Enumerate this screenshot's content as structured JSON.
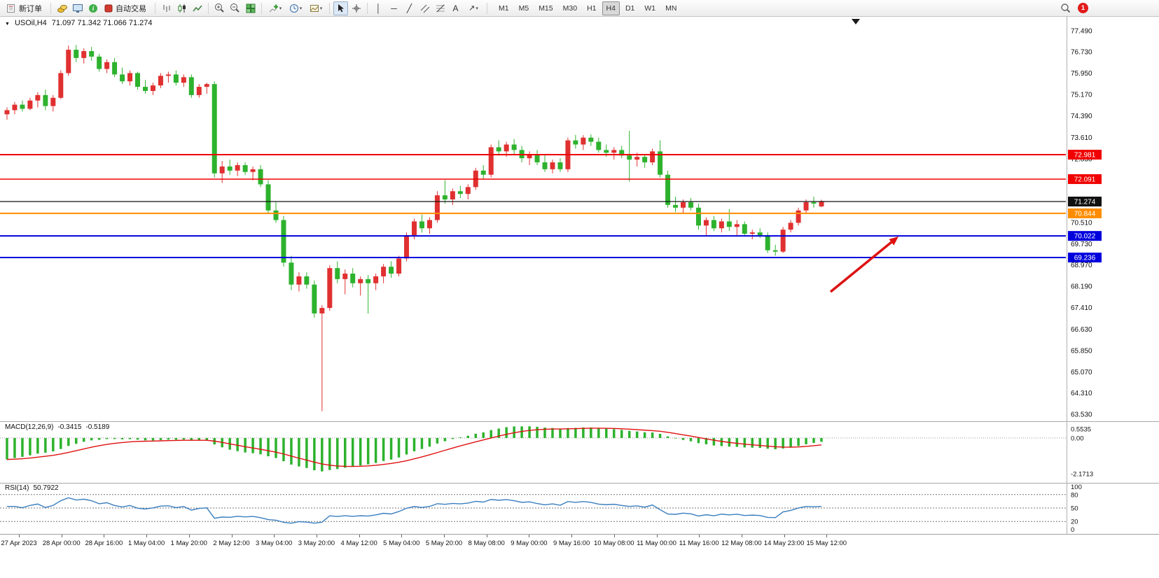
{
  "toolbar": {
    "new_order_label": "新订单",
    "autotrading_label": "自动交易",
    "timeframes": [
      "M1",
      "M5",
      "M15",
      "M30",
      "H1",
      "H4",
      "D1",
      "W1",
      "MN"
    ],
    "active_timeframe": "H4",
    "notification_count": "1",
    "tool_glyphs": {
      "vertical_line": "│",
      "horizontal_line": "─",
      "trendline": "╱",
      "text_tool": "A",
      "arrows_tool": "↗",
      "dropdown": "▾"
    }
  },
  "chart": {
    "collapse_glyph": "▼",
    "symbol_period": "USOil,H4",
    "ohlc": "71.097 71.342 71.066 71.274",
    "y_range": [
      63.53,
      77.49
    ],
    "colors": {
      "bull": "#e03030",
      "bear": "#2db22d"
    },
    "arrow_color": "#dd1111",
    "price_axis_labels": [
      "77.490",
      "76.730",
      "75.950",
      "75.170",
      "74.390",
      "73.610",
      "72.830",
      "72.050",
      "71.270",
      "70.510",
      "69.730",
      "68.970",
      "68.190",
      "67.410",
      "66.630",
      "65.850",
      "65.070",
      "64.310",
      "63.530"
    ],
    "levels": [
      {
        "price": 72.981,
        "label": "72.981",
        "color": "#f00000",
        "width": 2
      },
      {
        "price": 72.091,
        "label": "72.091",
        "color": "#f00000",
        "width": 1.5
      },
      {
        "price": 71.274,
        "label": "71.274",
        "color": "#101010",
        "width": 1.2
      },
      {
        "price": 70.844,
        "label": "70.844",
        "color": "#ff8c00",
        "width": 2
      },
      {
        "price": 70.022,
        "label": "70.022",
        "color": "#0000dd",
        "width": 2
      },
      {
        "price": 69.236,
        "label": "69.236",
        "color": "#0000dd",
        "width": 2
      }
    ]
  },
  "macd": {
    "label": "MACD(12,26,9)",
    "value_main": "-0.3415",
    "value_signal": "-0.5189",
    "axis": [
      "0.5535",
      "0.00",
      "-2.1713"
    ],
    "histogram_color": "#2db22d",
    "signal_color": "#e01010",
    "params": {
      "fast": 12,
      "slow": 26,
      "signal": 9
    }
  },
  "rsi": {
    "label": "RSI(14)",
    "value": "50.7922",
    "period": 14,
    "levels": [
      80,
      50,
      20
    ],
    "axis": [
      "100",
      "80",
      "50",
      "20",
      "0"
    ],
    "line_color": "#3a7ebf"
  },
  "chart_data": {
    "type": "candlestick",
    "symbol": "USOil",
    "timeframe": "H4",
    "ohlc_current": {
      "open": 71.097,
      "high": 71.342,
      "low": 71.066,
      "close": 71.274
    },
    "time_axis_labels": [
      "27 Apr 2023",
      "28 Apr 00:00",
      "28 Apr 16:00",
      "1 May 04:00",
      "1 May 20:00",
      "2 May 12:00",
      "3 May 04:00",
      "3 May 20:00",
      "4 May 12:00",
      "5 May 04:00",
      "5 May 20:00",
      "8 May 08:00",
      "9 May 00:00",
      "9 May 16:00",
      "10 May 08:00",
      "11 May 00:00",
      "11 May 16:00",
      "12 May 08:00",
      "14 May 23:00",
      "15 May 12:00"
    ],
    "candles": [
      [
        74.45,
        74.7,
        74.25,
        74.6
      ],
      [
        74.6,
        74.9,
        74.45,
        74.8
      ],
      [
        74.8,
        74.95,
        74.55,
        74.65
      ],
      [
        74.65,
        75.05,
        74.6,
        74.95
      ],
      [
        74.95,
        75.25,
        74.7,
        75.15
      ],
      [
        75.15,
        75.35,
        74.6,
        74.75
      ],
      [
        74.75,
        75.15,
        74.55,
        75.05
      ],
      [
        75.05,
        76.05,
        75.0,
        75.95
      ],
      [
        75.95,
        76.95,
        75.85,
        76.8
      ],
      [
        76.8,
        76.97,
        76.35,
        76.5
      ],
      [
        76.5,
        76.85,
        76.3,
        76.75
      ],
      [
        76.75,
        76.9,
        76.4,
        76.55
      ],
      [
        76.55,
        76.65,
        76.0,
        76.1
      ],
      [
        76.1,
        76.45,
        75.95,
        76.35
      ],
      [
        76.35,
        76.5,
        75.8,
        75.9
      ],
      [
        75.9,
        76.15,
        75.55,
        75.65
      ],
      [
        75.65,
        76.05,
        75.5,
        75.95
      ],
      [
        75.95,
        76.0,
        75.35,
        75.45
      ],
      [
        75.45,
        75.7,
        75.2,
        75.3
      ],
      [
        75.3,
        75.6,
        75.15,
        75.5
      ],
      [
        75.5,
        75.95,
        75.4,
        75.85
      ],
      [
        75.85,
        76.0,
        75.6,
        75.9
      ],
      [
        75.9,
        76.05,
        75.5,
        75.6
      ],
      [
        75.6,
        75.9,
        75.45,
        75.8
      ],
      [
        75.8,
        75.9,
        75.05,
        75.15
      ],
      [
        75.15,
        75.55,
        75.05,
        75.45
      ],
      [
        75.45,
        75.6,
        75.2,
        75.55
      ],
      [
        75.55,
        75.65,
        72.15,
        72.3
      ],
      [
        72.3,
        72.75,
        71.95,
        72.55
      ],
      [
        72.55,
        72.8,
        72.25,
        72.4
      ],
      [
        72.4,
        72.7,
        72.2,
        72.6
      ],
      [
        72.6,
        72.7,
        72.25,
        72.35
      ],
      [
        72.35,
        72.55,
        72.05,
        72.45
      ],
      [
        72.45,
        72.6,
        71.8,
        71.9
      ],
      [
        71.9,
        72.05,
        70.85,
        70.95
      ],
      [
        70.95,
        71.25,
        70.5,
        70.6
      ],
      [
        70.6,
        70.75,
        68.9,
        69.05
      ],
      [
        69.05,
        69.3,
        68.05,
        68.25
      ],
      [
        68.25,
        68.7,
        68.0,
        68.55
      ],
      [
        68.55,
        68.7,
        68.1,
        68.25
      ],
      [
        68.25,
        68.4,
        67.05,
        67.2
      ],
      [
        67.2,
        67.5,
        63.64,
        67.4
      ],
      [
        67.4,
        68.95,
        67.3,
        68.85
      ],
      [
        68.85,
        69.1,
        68.3,
        68.45
      ],
      [
        68.45,
        68.8,
        67.9,
        68.65
      ],
      [
        68.65,
        68.85,
        68.15,
        68.3
      ],
      [
        68.3,
        68.55,
        67.85,
        68.45
      ],
      [
        68.45,
        68.6,
        67.2,
        68.3
      ],
      [
        68.3,
        68.65,
        68.05,
        68.55
      ],
      [
        68.55,
        69.0,
        68.3,
        68.9
      ],
      [
        68.9,
        69.1,
        68.5,
        68.65
      ],
      [
        68.65,
        69.3,
        68.55,
        69.2
      ],
      [
        69.2,
        70.15,
        69.1,
        70.05
      ],
      [
        70.05,
        70.65,
        69.9,
        70.55
      ],
      [
        70.55,
        70.8,
        70.15,
        70.3
      ],
      [
        70.3,
        70.7,
        70.1,
        70.6
      ],
      [
        70.6,
        71.65,
        70.5,
        71.5
      ],
      [
        71.5,
        72.05,
        71.2,
        71.35
      ],
      [
        71.35,
        71.75,
        71.15,
        71.65
      ],
      [
        71.65,
        71.85,
        71.4,
        71.55
      ],
      [
        71.55,
        71.9,
        71.35,
        71.8
      ],
      [
        71.8,
        72.5,
        71.7,
        72.4
      ],
      [
        72.4,
        72.6,
        72.1,
        72.25
      ],
      [
        72.25,
        73.35,
        72.15,
        73.25
      ],
      [
        73.25,
        73.5,
        72.95,
        73.1
      ],
      [
        73.1,
        73.45,
        72.9,
        73.35
      ],
      [
        73.35,
        73.55,
        73.0,
        73.15
      ],
      [
        73.15,
        73.3,
        72.7,
        72.85
      ],
      [
        72.85,
        73.1,
        72.6,
        73.0
      ],
      [
        73.0,
        73.15,
        72.6,
        72.7
      ],
      [
        72.7,
        72.95,
        72.35,
        72.45
      ],
      [
        72.45,
        72.8,
        72.3,
        72.7
      ],
      [
        72.7,
        72.85,
        72.35,
        72.45
      ],
      [
        72.45,
        73.6,
        72.35,
        73.5
      ],
      [
        73.5,
        73.7,
        73.2,
        73.35
      ],
      [
        73.35,
        73.69,
        73.15,
        73.6
      ],
      [
        73.6,
        73.72,
        73.3,
        73.45
      ],
      [
        73.45,
        73.6,
        73.05,
        73.15
      ],
      [
        73.15,
        73.35,
        72.9,
        73.05
      ],
      [
        73.05,
        73.25,
        72.8,
        73.15
      ],
      [
        73.15,
        73.3,
        72.85,
        72.95
      ],
      [
        72.95,
        73.85,
        72.0,
        72.8
      ],
      [
        72.8,
        73.05,
        72.55,
        72.9
      ],
      [
        72.9,
        73.0,
        72.5,
        72.7
      ],
      [
        72.7,
        73.2,
        72.6,
        73.1
      ],
      [
        73.1,
        73.5,
        72.15,
        72.25
      ],
      [
        72.25,
        72.4,
        71.05,
        71.15
      ],
      [
        71.15,
        71.45,
        70.9,
        71.05
      ],
      [
        71.05,
        71.35,
        70.85,
        71.25
      ],
      [
        71.25,
        71.4,
        70.95,
        71.05
      ],
      [
        71.05,
        71.2,
        70.25,
        70.4
      ],
      [
        70.4,
        70.7,
        70.0,
        70.6
      ],
      [
        70.6,
        70.75,
        70.2,
        70.3
      ],
      [
        70.3,
        70.65,
        70.15,
        70.55
      ],
      [
        70.55,
        71.0,
        70.2,
        70.35
      ],
      [
        70.35,
        70.6,
        70.05,
        70.45
      ],
      [
        70.45,
        70.55,
        70.0,
        70.1
      ],
      [
        70.1,
        70.25,
        69.9,
        70.15
      ],
      [
        70.15,
        70.3,
        69.95,
        70.05
      ],
      [
        70.05,
        70.15,
        69.4,
        69.5
      ],
      [
        69.5,
        69.7,
        69.3,
        69.45
      ],
      [
        69.45,
        70.35,
        69.4,
        70.25
      ],
      [
        70.25,
        70.6,
        70.15,
        70.5
      ],
      [
        70.5,
        71.05,
        70.4,
        70.95
      ],
      [
        70.95,
        71.35,
        70.85,
        71.25
      ],
      [
        71.25,
        71.45,
        71.05,
        71.2
      ],
      [
        71.097,
        71.342,
        71.066,
        71.274
      ]
    ]
  }
}
